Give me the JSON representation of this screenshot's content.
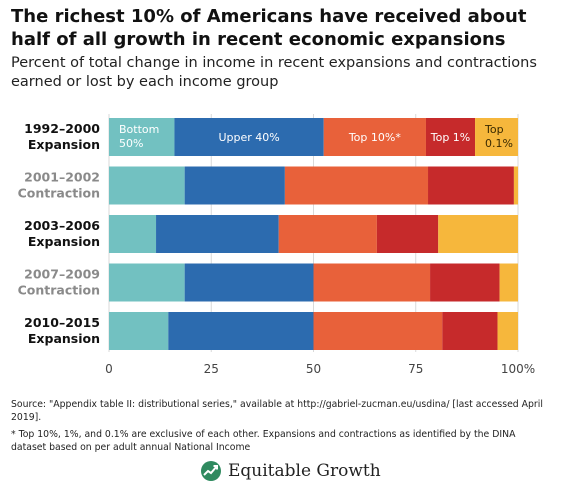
{
  "header": {
    "title": "The richest 10% of Americans have received about half of all growth in recent economic expansions",
    "subtitle": "Percent of total change in income in recent expansions and contractions earned or lost by each income group"
  },
  "chart_data": {
    "type": "bar",
    "orientation": "horizontal",
    "stacked": true,
    "categories": [
      [
        "1992–2000",
        "Expansion"
      ],
      [
        "2001–2002",
        "Contraction"
      ],
      [
        "2003–2006",
        "Expansion"
      ],
      [
        "2007–2009",
        "Contraction"
      ],
      [
        "2010–2015",
        "Expansion"
      ]
    ],
    "category_emphasis": [
      "strong",
      "muted",
      "strong",
      "muted",
      "strong"
    ],
    "series": [
      {
        "name": [
          "Bottom",
          "50%"
        ],
        "color": "#72c1c1",
        "values": [
          16,
          18.5,
          11.5,
          18.5,
          14.5
        ]
      },
      {
        "name": [
          "Upper 40%"
        ],
        "color": "#2c6baf",
        "values": [
          36.5,
          24.5,
          30,
          31.5,
          35.5
        ]
      },
      {
        "name": [
          "Top 10%*"
        ],
        "color": "#e8613a",
        "values": [
          25,
          35,
          24,
          28.5,
          31.5
        ]
      },
      {
        "name": [
          "Top 1%"
        ],
        "color": "#c62a2b",
        "values": [
          12,
          21,
          15,
          17,
          13.5
        ]
      },
      {
        "name": [
          "Top",
          "0.1%"
        ],
        "color": "#f6b73c",
        "values": [
          10.5,
          1,
          19.5,
          4.5,
          5
        ]
      }
    ],
    "series_labels_on_row": 0,
    "xlim": [
      0,
      100
    ],
    "xticks": [
      0,
      25,
      50,
      75,
      100
    ],
    "xtick_labels": [
      "0",
      "25",
      "50",
      "75",
      "100%"
    ],
    "grid": true
  },
  "footer": {
    "source": "Source: \"Appendix table II: distributional series,\" available at http://gabriel-zucman.eu/usdina/ [last accessed April 2019].",
    "note": "* Top 10%, 1%, and 0.1% are exclusive of each other. Expansions and contractions as identified by the DINA dataset based on per adult annual National Income",
    "logo_text": "Equitable Growth",
    "logo_icon": "growth-leaf-icon"
  }
}
